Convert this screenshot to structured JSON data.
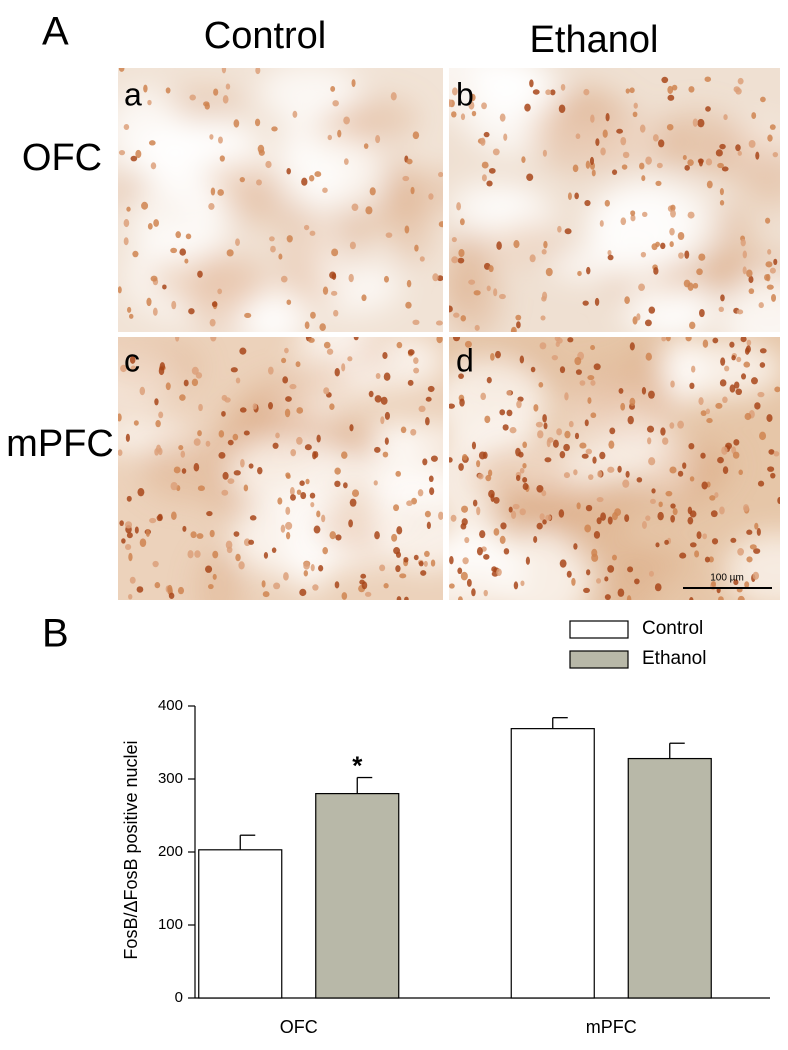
{
  "panel_a": {
    "panel_label": "A",
    "columns": [
      "Control",
      "Ethanol"
    ],
    "rows": [
      "OFC",
      "mPFC"
    ],
    "image_labels": [
      "a",
      "b",
      "c",
      "d"
    ],
    "scale_bar": "100 µm"
  },
  "chart_data": {
    "type": "bar",
    "panel_label": "B",
    "y_label": "FosB/ΔFosB positive nuclei",
    "categories": [
      "OFC",
      "mPFC"
    ],
    "series": [
      {
        "name": "Control",
        "color": "#ffffff",
        "values": [
          203,
          369
        ],
        "errors": [
          20,
          15
        ]
      },
      {
        "name": "Ethanol",
        "color": "#b8b8a8",
        "values": [
          280,
          328
        ],
        "errors": [
          22,
          21
        ]
      }
    ],
    "ylim": [
      0,
      400
    ],
    "yticks": [
      0,
      100,
      200,
      300,
      400
    ],
    "significance_marker": "*",
    "grid": false
  }
}
